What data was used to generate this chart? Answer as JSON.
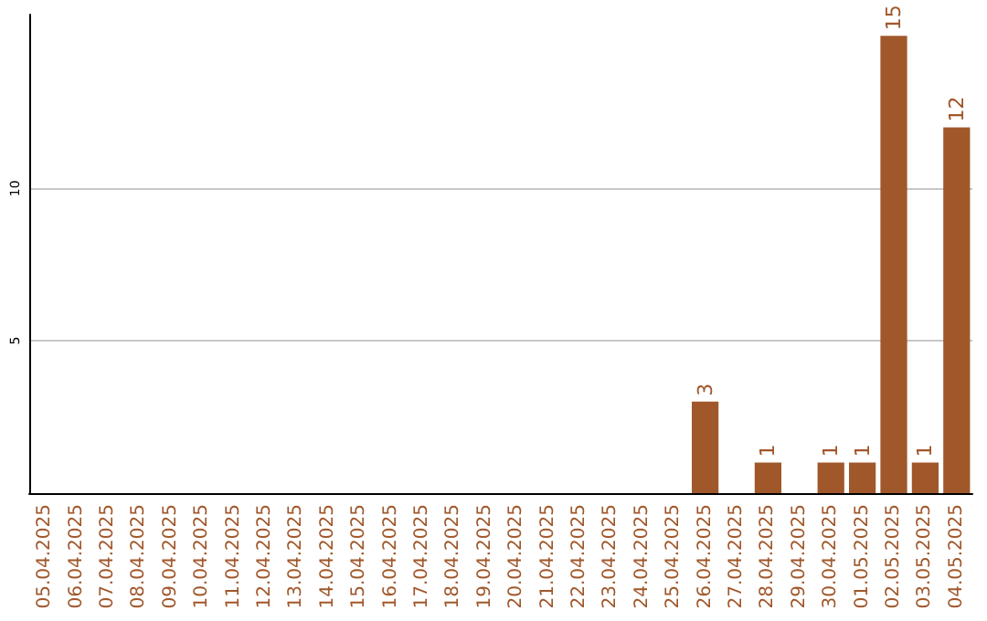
{
  "chart_data": {
    "type": "bar",
    "categories": [
      "05.04.2025",
      "06.04.2025",
      "07.04.2025",
      "08.04.2025",
      "09.04.2025",
      "10.04.2025",
      "11.04.2025",
      "12.04.2025",
      "13.04.2025",
      "14.04.2025",
      "15.04.2025",
      "16.04.2025",
      "17.04.2025",
      "18.04.2025",
      "19.04.2025",
      "20.04.2025",
      "21.04.2025",
      "22.04.2025",
      "23.04.2025",
      "24.04.2025",
      "25.04.2025",
      "26.04.2025",
      "27.04.2025",
      "28.04.2025",
      "29.04.2025",
      "30.04.2025",
      "01.05.2025",
      "02.05.2025",
      "03.05.2025",
      "04.05.2025"
    ],
    "values": [
      0,
      0,
      0,
      0,
      0,
      0,
      0,
      0,
      0,
      0,
      0,
      0,
      0,
      0,
      0,
      0,
      0,
      0,
      0,
      0,
      0,
      3,
      0,
      1,
      0,
      1,
      1,
      15,
      1,
      12
    ],
    "value_labels": [
      null,
      null,
      null,
      null,
      null,
      null,
      null,
      null,
      null,
      null,
      null,
      null,
      null,
      null,
      null,
      null,
      null,
      null,
      null,
      null,
      null,
      "3",
      null,
      "1",
      null,
      "1",
      "1",
      "15",
      "1",
      "12"
    ],
    "color": "#a0572a",
    "ylim": [
      0,
      15.7
    ],
    "yticks": [
      5,
      10
    ],
    "grid": "y"
  }
}
